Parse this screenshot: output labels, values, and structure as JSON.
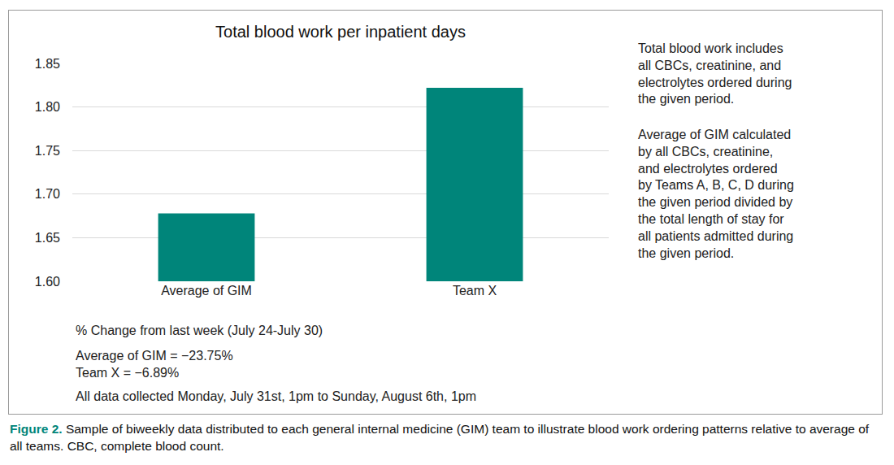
{
  "chart_data": {
    "type": "bar",
    "title": "Total blood work per inpatient days",
    "categories": [
      "Average of GIM",
      "Team X"
    ],
    "values": [
      1.678,
      1.822
    ],
    "color": "#00857a",
    "ylim": [
      1.6,
      1.85
    ],
    "yticks": [
      {
        "value": 1.6,
        "label": "1.60"
      },
      {
        "value": 1.65,
        "label": "1.65"
      },
      {
        "value": 1.7,
        "label": "1.70"
      },
      {
        "value": 1.75,
        "label": "1.75"
      },
      {
        "value": 1.8,
        "label": "1.80"
      },
      {
        "value": 1.85,
        "label": "1.85"
      }
    ],
    "grid": true,
    "annotations": [
      {
        "lines": [
          "Total blood work includes",
          "all CBCs, creatinine, and",
          "electrolytes ordered during",
          "the given period."
        ]
      },
      {
        "lines": [
          "Average of GIM calculated",
          "by all CBCs, creatinine,",
          "and electrolytes ordered",
          "by Teams A, B, C, D during",
          "the given period divided by",
          "the total length of stay for",
          "all patients admitted during",
          "the given period."
        ]
      },
      {
        "lines": [
          "% Change from last week (July 24-July 30)"
        ]
      },
      {
        "lines": [
          "Average of GIM = −23.75%",
          "Team X = −6.89%"
        ]
      },
      {
        "lines": [
          "All data collected Monday, July 31st, 1pm to Sunday, August 6th, 1pm"
        ]
      }
    ]
  },
  "caption": {
    "label": "Figure 2.",
    "text": "Sample of biweekly data distributed to each general internal medicine (GIM) team to illustrate blood work ordering patterns relative to average of all teams. CBC, complete blood count."
  }
}
